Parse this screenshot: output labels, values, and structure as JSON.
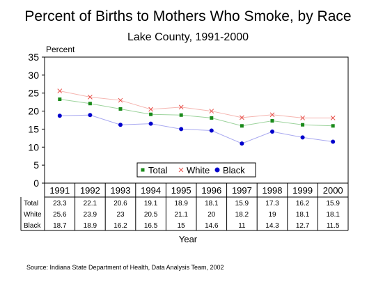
{
  "title": "Percent of Births to Mothers Who Smoke, by Race",
  "subtitle": "Lake County, 1991-2000",
  "ylabel": "Percent",
  "xlabel": "Year",
  "source": "Source:  Indiana State Department of Health, Data Analysis Team, 2002",
  "chart_data": {
    "type": "line",
    "x": [
      "1991",
      "1992",
      "1993",
      "1994",
      "1995",
      "1996",
      "1997",
      "1998",
      "1999",
      "2000"
    ],
    "ylim": [
      0,
      35
    ],
    "yticks": [
      0,
      5,
      10,
      15,
      20,
      25,
      30,
      35
    ],
    "grid": false,
    "legend_position": "bottom-right inside plot",
    "series": [
      {
        "name": "Total",
        "color": "#1a8a1a",
        "marker": "square",
        "line_color": "#9cd39c",
        "values": [
          23.3,
          22.1,
          20.6,
          19.1,
          18.9,
          18.1,
          15.9,
          17.3,
          16.2,
          15.9
        ],
        "table_labels": [
          "23.3",
          "22.1",
          "20.6",
          "19.1",
          "18.9",
          "18.1",
          "15.9",
          "17.3",
          "16.2",
          "15.9"
        ]
      },
      {
        "name": "White",
        "color": "#e8504a",
        "marker": "x",
        "line_color": "#f5b5b0",
        "values": [
          25.6,
          23.9,
          23,
          20.5,
          21.1,
          20,
          18.2,
          19,
          18.1,
          18.1
        ],
        "table_labels": [
          "25.6",
          "23.9",
          "23",
          "20.5",
          "21.1",
          "20",
          "18.2",
          "19",
          "18.1",
          "18.1"
        ]
      },
      {
        "name": "Black",
        "color": "#0000cc",
        "marker": "circle",
        "line_color": "#a8a8f0",
        "values": [
          18.7,
          18.9,
          16.2,
          16.5,
          15,
          14.6,
          11,
          14.3,
          12.7,
          11.5
        ],
        "table_labels": [
          "18.7",
          "18.9",
          "16.2",
          "16.5",
          "15",
          "14.6",
          "11",
          "14.3",
          "12.7",
          "11.5"
        ]
      }
    ]
  }
}
